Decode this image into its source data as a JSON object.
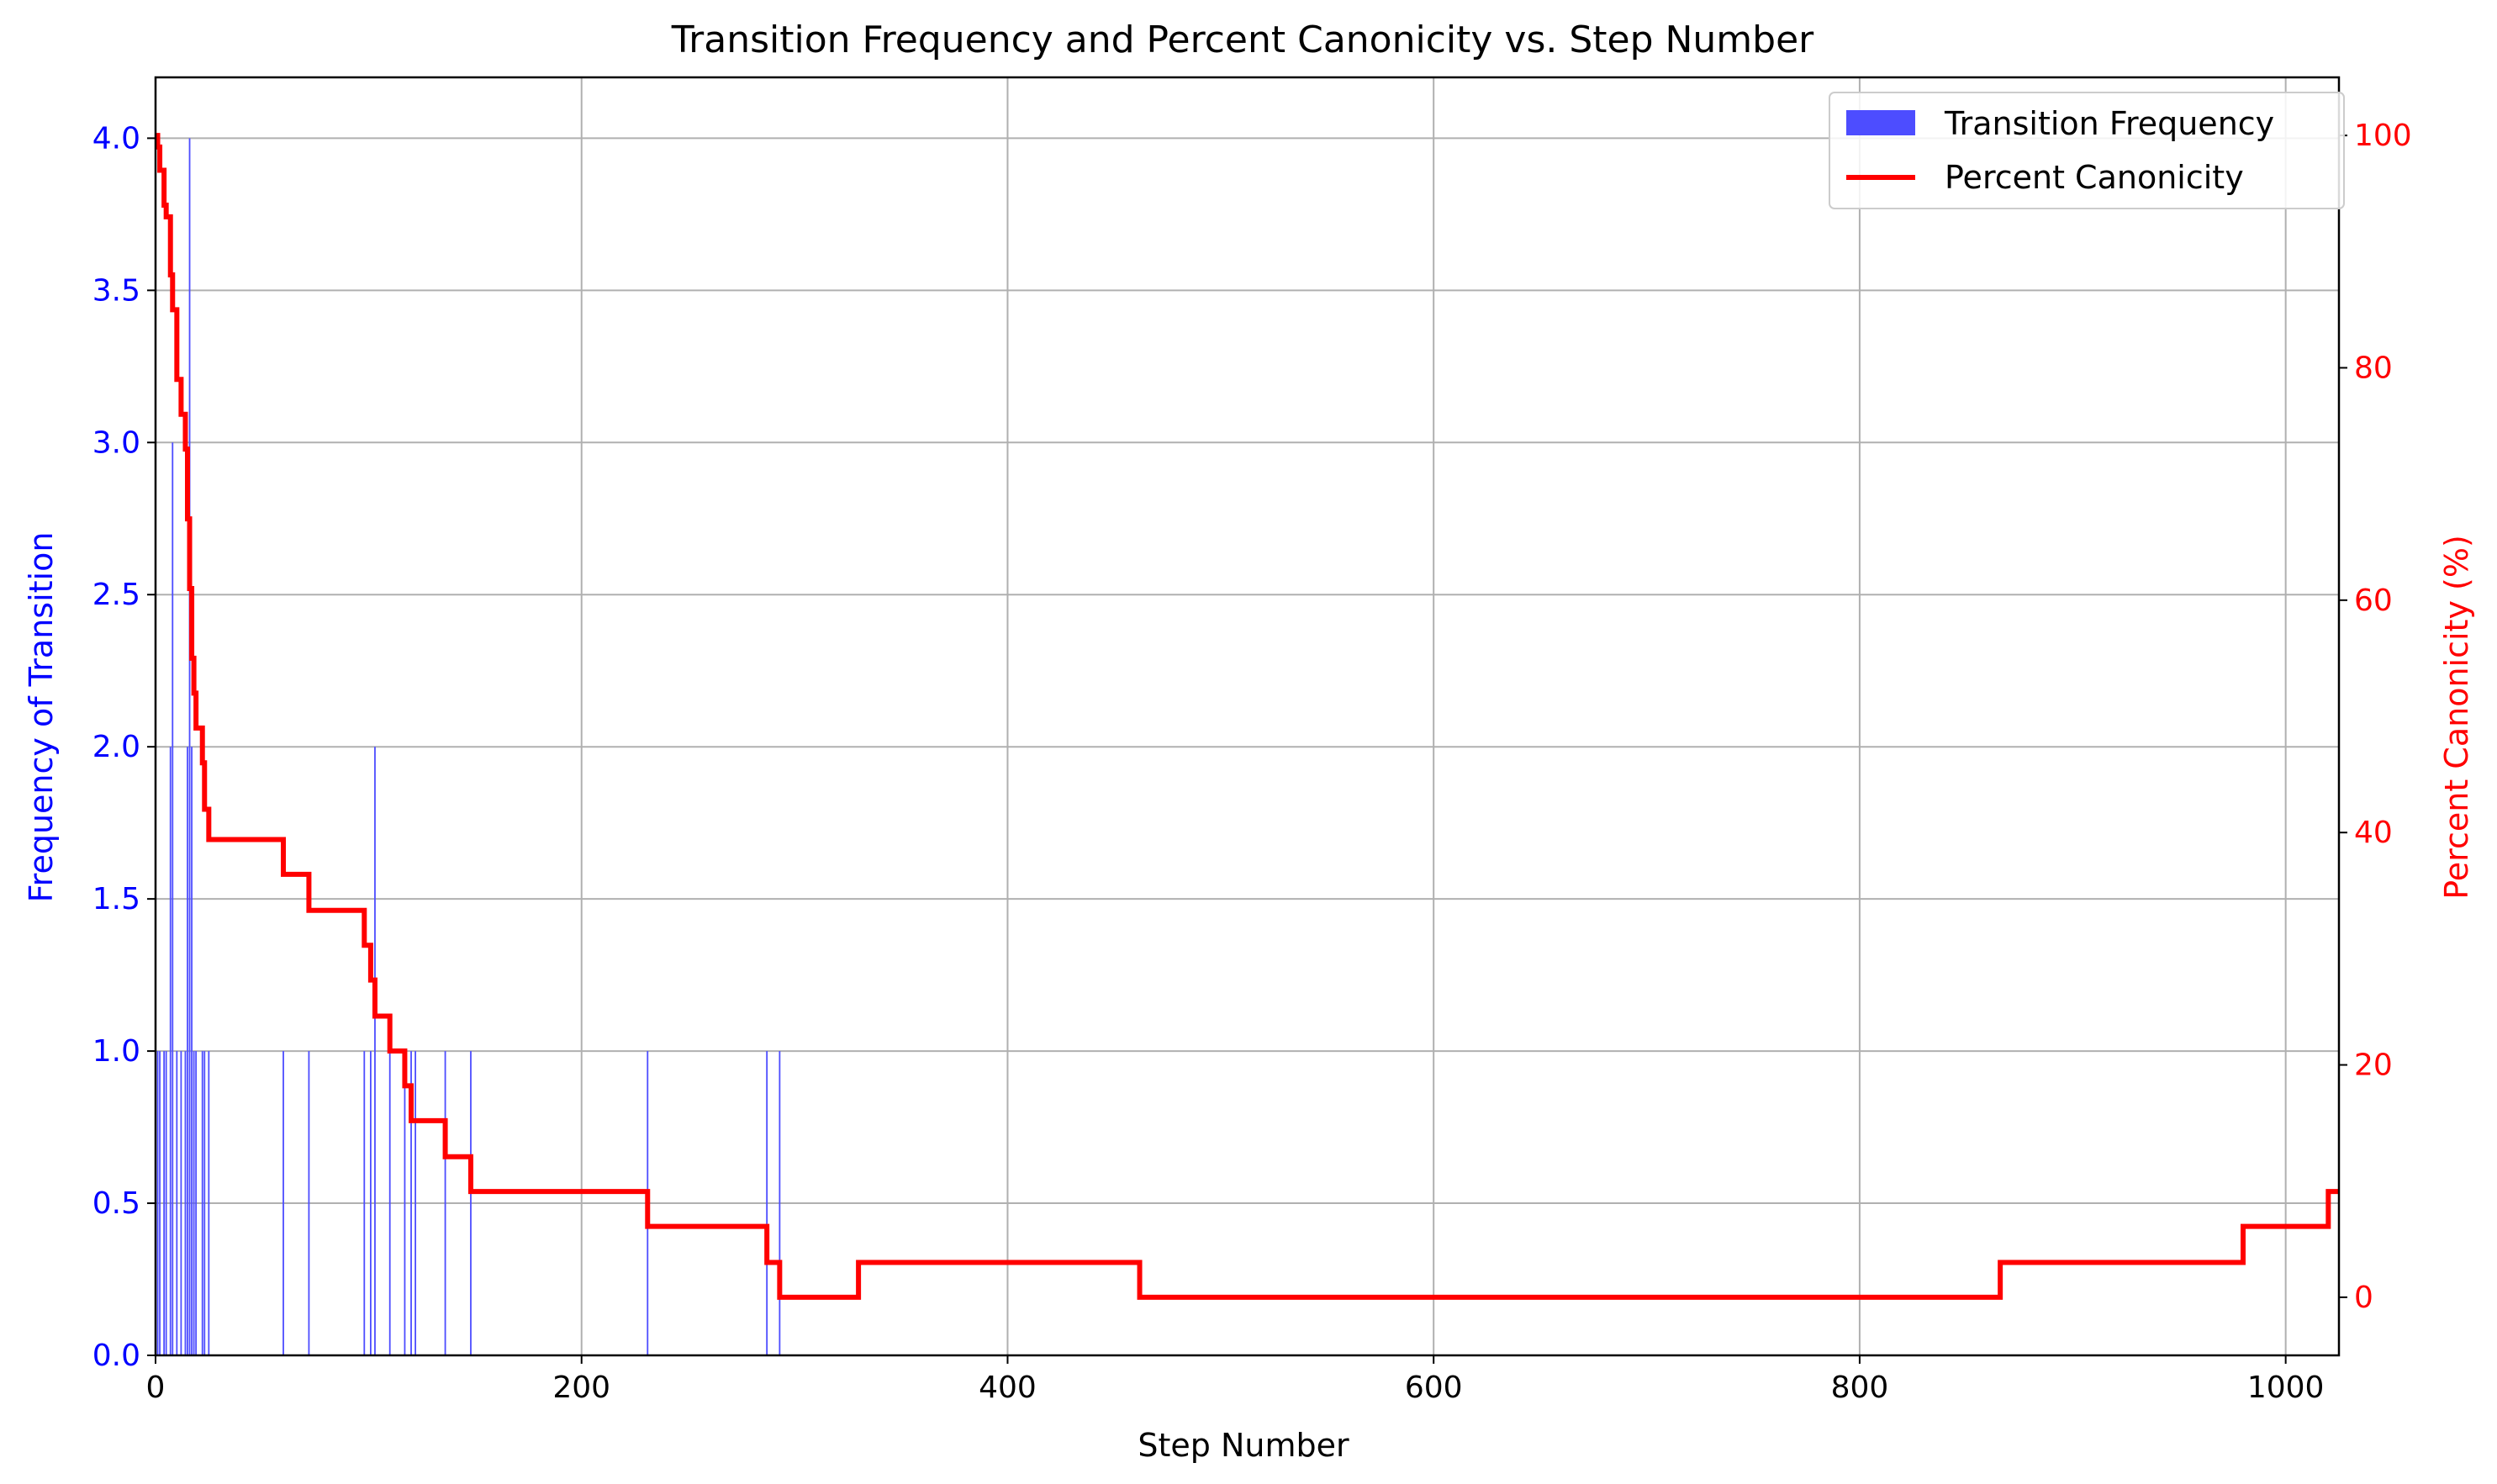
{
  "chart_data": {
    "type": "bar+line",
    "title": "Transition Frequency and Percent Canonicity vs. Step Number",
    "xlabel": "Step Number",
    "ylabel_left": "Frequency of Transition",
    "ylabel_right": "Percent Canonicity (%)",
    "xlim": [
      0,
      1025
    ],
    "ylim_left": [
      0,
      4.2
    ],
    "ylim_right": [
      -5,
      105
    ],
    "x_ticks": [
      0,
      200,
      400,
      600,
      800,
      1000
    ],
    "y_left_ticks": [
      "0.0",
      "0.5",
      "1.0",
      "1.5",
      "2.0",
      "2.5",
      "3.0",
      "3.5",
      "4.0"
    ],
    "y_right_ticks": [
      0,
      20,
      40,
      60,
      80,
      100
    ],
    "grid": true,
    "legend_position": "top-right",
    "colors": {
      "bars": "#4d4dff",
      "line": "#ff0000",
      "left_axis": "#0000ff",
      "right_axis": "#ff0000"
    },
    "series": [
      {
        "name": "Transition Frequency",
        "type": "bar",
        "x": [
          1,
          2,
          4,
          5,
          7,
          8,
          10,
          12,
          14,
          15,
          16,
          17,
          18,
          19,
          22,
          23,
          25,
          60,
          72,
          98,
          101,
          103,
          110,
          117,
          120,
          122,
          136,
          148,
          231,
          287,
          293
        ],
        "values": [
          1,
          1,
          1,
          1,
          2,
          3,
          1,
          1,
          1,
          2,
          4,
          2,
          1,
          1,
          1,
          1,
          1,
          1,
          1,
          1,
          1,
          2,
          1,
          1,
          1,
          1,
          1,
          1,
          1,
          1,
          1
        ]
      },
      {
        "name": "Percent Canonicity",
        "type": "step-line",
        "x": [
          0,
          1,
          2,
          4,
          5,
          7,
          8,
          10,
          12,
          14,
          15,
          16,
          17,
          18,
          19,
          22,
          23,
          25,
          60,
          72,
          98,
          101,
          103,
          110,
          117,
          120,
          122,
          136,
          148,
          231,
          287,
          293,
          330,
          462,
          866,
          980,
          1020,
          1025
        ],
        "values": [
          100,
          99,
          97,
          94,
          93,
          88,
          85,
          79,
          76,
          73,
          67,
          61,
          55,
          52,
          49,
          46,
          42,
          39.4,
          36.4,
          33.3,
          30.3,
          27.3,
          24.2,
          21.2,
          18.2,
          15.2,
          15.2,
          12.1,
          9.1,
          6.1,
          3,
          0,
          3,
          0,
          3,
          6.1,
          9.1,
          9.1
        ]
      }
    ]
  }
}
